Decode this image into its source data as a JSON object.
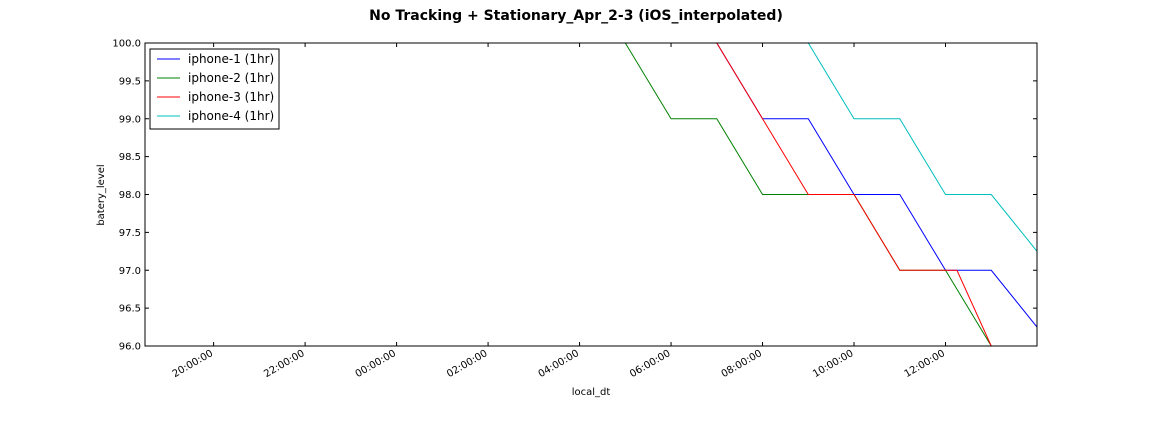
{
  "chart_data": {
    "type": "line",
    "title": "No Tracking + Stationary_Apr_2-3 (iOS_interpolated)",
    "xlabel": "local_dt",
    "ylabel": "batery_level",
    "xlim": [
      "2016-04-02 18:30:00",
      "2016-04-03 14:00:00"
    ],
    "ylim": [
      96.0,
      100.0
    ],
    "x_tick_labels": [
      "20:00:00",
      "22:00:00",
      "00:00:00",
      "02:00:00",
      "04:00:00",
      "06:00:00",
      "08:00:00",
      "10:00:00",
      "12:00:00"
    ],
    "y_tick_labels": [
      "96.0",
      "96.5",
      "97.0",
      "97.5",
      "98.0",
      "98.5",
      "99.0",
      "99.5",
      "100.0"
    ],
    "grid": false,
    "legend_position": "top-left",
    "series": [
      {
        "name": "iphone-1 (1hr)",
        "color": "#0000ff",
        "points": [
          {
            "x": "2016-04-03 07:00:00",
            "y": 100
          },
          {
            "x": "2016-04-03 08:00:00",
            "y": 99
          },
          {
            "x": "2016-04-03 09:00:00",
            "y": 99
          },
          {
            "x": "2016-04-03 10:00:00",
            "y": 98
          },
          {
            "x": "2016-04-03 11:00:00",
            "y": 98
          },
          {
            "x": "2016-04-03 12:00:00",
            "y": 97
          },
          {
            "x": "2016-04-03 13:00:00",
            "y": 97
          },
          {
            "x": "2016-04-03 14:00:00",
            "y": 96.25
          }
        ]
      },
      {
        "name": "iphone-2 (1hr)",
        "color": "#008000",
        "points": [
          {
            "x": "2016-04-03 05:00:00",
            "y": 100
          },
          {
            "x": "2016-04-03 06:00:00",
            "y": 99
          },
          {
            "x": "2016-04-03 07:00:00",
            "y": 99
          },
          {
            "x": "2016-04-03 08:00:00",
            "y": 98
          },
          {
            "x": "2016-04-03 09:00:00",
            "y": 98
          },
          {
            "x": "2016-04-03 10:00:00",
            "y": 98
          },
          {
            "x": "2016-04-03 11:00:00",
            "y": 97
          },
          {
            "x": "2016-04-03 12:00:00",
            "y": 97
          },
          {
            "x": "2016-04-03 13:00:00",
            "y": 96
          },
          {
            "x": "2016-04-03 14:00:00",
            "y": 96
          }
        ]
      },
      {
        "name": "iphone-3 (1hr)",
        "color": "#ff0000",
        "points": [
          {
            "x": "2016-04-03 07:00:00",
            "y": 100
          },
          {
            "x": "2016-04-03 08:00:00",
            "y": 99
          },
          {
            "x": "2016-04-03 09:00:00",
            "y": 98
          },
          {
            "x": "2016-04-03 10:00:00",
            "y": 98
          },
          {
            "x": "2016-04-03 11:00:00",
            "y": 97
          },
          {
            "x": "2016-04-03 12:15:00",
            "y": 97
          },
          {
            "x": "2016-04-03 13:00:00",
            "y": 96
          },
          {
            "x": "2016-04-03 14:00:00",
            "y": 96
          }
        ]
      },
      {
        "name": "iphone-4 (1hr)",
        "color": "#00bfbf",
        "points": [
          {
            "x": "2016-04-03 09:00:00",
            "y": 100
          },
          {
            "x": "2016-04-03 10:00:00",
            "y": 99
          },
          {
            "x": "2016-04-03 11:00:00",
            "y": 99
          },
          {
            "x": "2016-04-03 12:00:00",
            "y": 98
          },
          {
            "x": "2016-04-03 13:00:00",
            "y": 98
          },
          {
            "x": "2016-04-03 14:00:00",
            "y": 97.25
          }
        ]
      }
    ]
  }
}
